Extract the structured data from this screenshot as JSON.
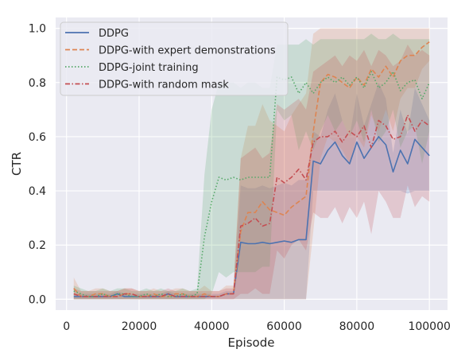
{
  "chart_data": {
    "type": "line",
    "title": "",
    "xlabel": "Episode",
    "ylabel": "CTR",
    "xlim": [
      -3000,
      105000
    ],
    "ylim": [
      -0.04,
      1.04
    ],
    "xticks": [
      0,
      20000,
      40000,
      60000,
      80000,
      100000
    ],
    "xtick_labels": [
      "0",
      "20000",
      "40000",
      "60000",
      "80000",
      "100000"
    ],
    "yticks": [
      0.0,
      0.2,
      0.4,
      0.6,
      0.8,
      1.0
    ],
    "ytick_labels": [
      "0.0",
      "0.2",
      "0.4",
      "0.6",
      "0.8",
      "1.0"
    ],
    "grid": true,
    "legend_position": "top-left",
    "style": {
      "background": "#eaeaf2",
      "grid_color": "#ffffff",
      "band_opacity": 0.22
    },
    "x": [
      2000,
      4000,
      6000,
      8000,
      10000,
      12000,
      14000,
      16000,
      18000,
      20000,
      22000,
      24000,
      26000,
      28000,
      30000,
      32000,
      34000,
      36000,
      38000,
      40000,
      42000,
      44000,
      46000,
      48000,
      50000,
      52000,
      54000,
      56000,
      58000,
      60000,
      62000,
      64000,
      66000,
      68000,
      70000,
      72000,
      74000,
      76000,
      78000,
      80000,
      82000,
      84000,
      86000,
      88000,
      90000,
      92000,
      94000,
      96000,
      98000,
      100000
    ],
    "series": [
      {
        "name": "DDPG",
        "color": "#4c72b0",
        "dash": "solid",
        "values": [
          0.01,
          0.01,
          0.01,
          0.01,
          0.01,
          0.01,
          0.02,
          0.01,
          0.01,
          0.01,
          0.01,
          0.01,
          0.01,
          0.02,
          0.01,
          0.01,
          0.01,
          0.01,
          0.01,
          0.01,
          0.01,
          0.02,
          0.02,
          0.21,
          0.205,
          0.205,
          0.21,
          0.205,
          0.21,
          0.215,
          0.21,
          0.22,
          0.22,
          0.51,
          0.5,
          0.55,
          0.58,
          0.53,
          0.5,
          0.58,
          0.52,
          0.56,
          0.6,
          0.57,
          0.47,
          0.55,
          0.5,
          0.59,
          0.56,
          0.53
        ],
        "lower": [
          0.0,
          0.0,
          0.0,
          0.0,
          0.0,
          0.0,
          0.0,
          0.0,
          0.0,
          0.0,
          0.0,
          0.0,
          0.0,
          0.0,
          0.0,
          0.0,
          0.0,
          0.0,
          0.0,
          0.0,
          0.0,
          0.0,
          0.0,
          0.0,
          0.0,
          0.0,
          0.0,
          0.0,
          0.0,
          0.0,
          0.0,
          0.0,
          0.0,
          0.4,
          0.4,
          0.4,
          0.4,
          0.4,
          0.4,
          0.4,
          0.4,
          0.4,
          0.4,
          0.4,
          0.4,
          0.4,
          0.39,
          0.4,
          0.4,
          0.4
        ],
        "upper": [
          0.02,
          0.02,
          0.02,
          0.02,
          0.02,
          0.02,
          0.03,
          0.02,
          0.02,
          0.02,
          0.02,
          0.02,
          0.02,
          0.03,
          0.02,
          0.02,
          0.02,
          0.02,
          0.02,
          0.02,
          0.02,
          0.03,
          0.03,
          0.42,
          0.41,
          0.41,
          0.42,
          0.41,
          0.42,
          0.43,
          0.42,
          0.44,
          0.44,
          0.62,
          0.6,
          0.7,
          0.76,
          0.66,
          0.6,
          0.76,
          0.64,
          0.72,
          0.8,
          0.74,
          0.54,
          0.7,
          0.61,
          0.78,
          0.72,
          0.66
        ]
      },
      {
        "name": "DDPG-with expert demonstrations",
        "color": "#dd8452",
        "dash": "dashed",
        "values": [
          0.04,
          0.01,
          0.01,
          0.02,
          0.02,
          0.01,
          0.01,
          0.02,
          0.02,
          0.01,
          0.01,
          0.02,
          0.01,
          0.01,
          0.02,
          0.02,
          0.01,
          0.01,
          0.02,
          0.01,
          0.01,
          0.02,
          0.02,
          0.25,
          0.32,
          0.32,
          0.36,
          0.33,
          0.32,
          0.31,
          0.34,
          0.36,
          0.38,
          0.62,
          0.8,
          0.83,
          0.82,
          0.8,
          0.78,
          0.82,
          0.79,
          0.85,
          0.82,
          0.86,
          0.82,
          0.88,
          0.9,
          0.9,
          0.93,
          0.95
        ],
        "lower": [
          0.0,
          0.0,
          0.0,
          0.0,
          0.0,
          0.0,
          0.0,
          0.0,
          0.0,
          0.0,
          0.0,
          0.0,
          0.0,
          0.0,
          0.0,
          0.0,
          0.0,
          0.0,
          0.0,
          0.0,
          0.0,
          0.0,
          0.0,
          0.0,
          0.0,
          0.0,
          0.0,
          0.0,
          0.0,
          0.0,
          0.0,
          0.0,
          0.0,
          0.25,
          0.52,
          0.6,
          0.58,
          0.55,
          0.5,
          0.6,
          0.56,
          0.68,
          0.62,
          0.7,
          0.62,
          0.74,
          0.78,
          0.78,
          0.85,
          0.88
        ],
        "upper": [
          0.08,
          0.03,
          0.03,
          0.04,
          0.04,
          0.03,
          0.03,
          0.04,
          0.04,
          0.03,
          0.03,
          0.04,
          0.03,
          0.03,
          0.04,
          0.04,
          0.03,
          0.03,
          0.05,
          0.03,
          0.03,
          0.05,
          0.05,
          0.52,
          0.64,
          0.64,
          0.72,
          0.66,
          0.64,
          0.62,
          0.68,
          0.72,
          0.76,
          0.98,
          1.0,
          1.0,
          1.0,
          1.0,
          1.0,
          1.0,
          1.0,
          1.0,
          1.0,
          1.0,
          1.0,
          1.0,
          1.0,
          1.0,
          1.0,
          1.0
        ]
      },
      {
        "name": "DDPG-joint training",
        "color": "#55a868",
        "dash": "dotted",
        "values": [
          0.03,
          0.02,
          0.01,
          0.01,
          0.02,
          0.01,
          0.02,
          0.02,
          0.01,
          0.01,
          0.02,
          0.01,
          0.02,
          0.01,
          0.01,
          0.02,
          0.01,
          0.02,
          0.23,
          0.36,
          0.45,
          0.44,
          0.45,
          0.44,
          0.45,
          0.45,
          0.45,
          0.45,
          0.82,
          0.81,
          0.82,
          0.76,
          0.8,
          0.76,
          0.8,
          0.82,
          0.8,
          0.82,
          0.79,
          0.82,
          0.78,
          0.84,
          0.78,
          0.8,
          0.84,
          0.77,
          0.8,
          0.81,
          0.74,
          0.8
        ],
        "lower": [
          0.0,
          0.0,
          0.0,
          0.0,
          0.0,
          0.0,
          0.0,
          0.0,
          0.0,
          0.0,
          0.0,
          0.0,
          0.0,
          0.0,
          0.0,
          0.0,
          0.0,
          0.0,
          0.0,
          0.02,
          0.1,
          0.08,
          0.1,
          0.1,
          0.1,
          0.1,
          0.12,
          0.12,
          0.7,
          0.66,
          0.68,
          0.55,
          0.62,
          0.55,
          0.62,
          0.68,
          0.62,
          0.66,
          0.6,
          0.66,
          0.58,
          0.7,
          0.58,
          0.62,
          0.7,
          0.56,
          0.62,
          0.64,
          0.5,
          0.62
        ],
        "upper": [
          0.05,
          0.04,
          0.03,
          0.03,
          0.04,
          0.03,
          0.04,
          0.04,
          0.03,
          0.03,
          0.04,
          0.03,
          0.04,
          0.03,
          0.03,
          0.04,
          0.03,
          0.04,
          0.46,
          0.7,
          0.8,
          0.8,
          0.8,
          0.78,
          0.8,
          0.8,
          0.78,
          0.78,
          0.94,
          0.94,
          0.94,
          0.94,
          0.96,
          0.94,
          0.96,
          0.96,
          0.96,
          0.96,
          0.96,
          0.96,
          0.96,
          0.98,
          0.96,
          0.96,
          0.98,
          0.96,
          0.96,
          0.96,
          0.96,
          0.96
        ]
      },
      {
        "name": "DDPG-with random mask",
        "color": "#c44e52",
        "dash": "dashdot",
        "values": [
          0.02,
          0.01,
          0.01,
          0.01,
          0.01,
          0.01,
          0.01,
          0.02,
          0.02,
          0.01,
          0.01,
          0.01,
          0.01,
          0.02,
          0.01,
          0.01,
          0.01,
          0.01,
          0.01,
          0.01,
          0.01,
          0.02,
          0.02,
          0.27,
          0.28,
          0.3,
          0.27,
          0.28,
          0.45,
          0.43,
          0.45,
          0.48,
          0.44,
          0.58,
          0.6,
          0.6,
          0.62,
          0.58,
          0.62,
          0.6,
          0.64,
          0.56,
          0.66,
          0.64,
          0.59,
          0.6,
          0.68,
          0.62,
          0.66,
          0.64
        ],
        "lower": [
          0.0,
          0.0,
          0.0,
          0.0,
          0.0,
          0.0,
          0.0,
          0.0,
          0.0,
          0.0,
          0.0,
          0.0,
          0.0,
          0.0,
          0.0,
          0.0,
          0.0,
          0.0,
          0.0,
          0.0,
          0.0,
          0.0,
          0.0,
          0.02,
          0.02,
          0.04,
          0.02,
          0.02,
          0.18,
          0.15,
          0.2,
          0.22,
          0.18,
          0.32,
          0.3,
          0.3,
          0.34,
          0.28,
          0.34,
          0.3,
          0.36,
          0.24,
          0.4,
          0.36,
          0.3,
          0.3,
          0.42,
          0.34,
          0.38,
          0.36
        ],
        "upper": [
          0.04,
          0.03,
          0.03,
          0.03,
          0.03,
          0.03,
          0.03,
          0.04,
          0.04,
          0.03,
          0.03,
          0.03,
          0.03,
          0.04,
          0.03,
          0.03,
          0.03,
          0.03,
          0.03,
          0.03,
          0.03,
          0.04,
          0.04,
          0.52,
          0.54,
          0.56,
          0.52,
          0.54,
          0.72,
          0.7,
          0.72,
          0.74,
          0.7,
          0.84,
          0.86,
          0.88,
          0.9,
          0.86,
          0.9,
          0.88,
          0.92,
          0.86,
          0.92,
          0.9,
          0.86,
          0.88,
          0.94,
          0.9,
          0.92,
          0.9
        ]
      }
    ]
  }
}
